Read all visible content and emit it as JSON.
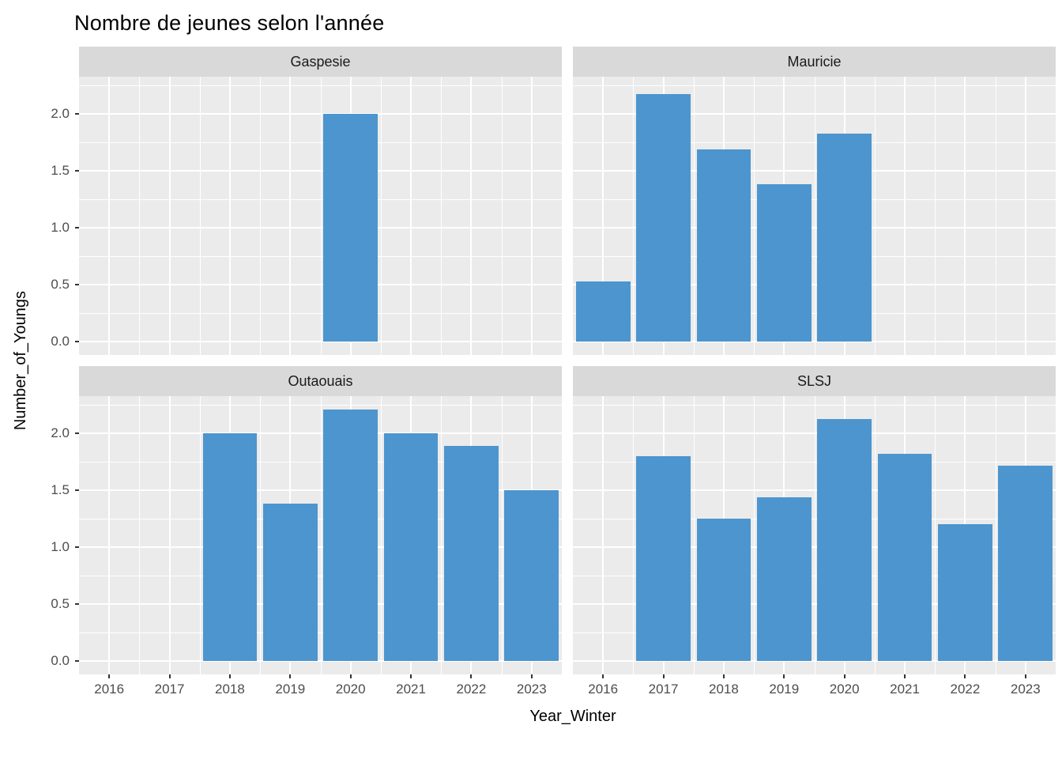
{
  "chart_data": {
    "type": "bar",
    "title": "Nombre de jeunes selon l'année",
    "xlabel": "Year_Winter",
    "ylabel": "Number_of_Youngs",
    "categories": [
      "2016",
      "2017",
      "2018",
      "2019",
      "2020",
      "2021",
      "2022",
      "2023"
    ],
    "y_ticks": [
      0,
      0.5,
      1,
      1.5,
      2
    ],
    "y_tick_labels": [
      "0.0",
      "0.5",
      "1.0",
      "1.5",
      "2.0"
    ],
    "ylim": [
      -0.12,
      2.33
    ],
    "grid": true,
    "legend": false,
    "bar_color": "#4D95CE",
    "panel_bg": "#EBEBEB",
    "strip_bg": "#D9D9D9",
    "facets": [
      {
        "name": "Gaspesie",
        "values": [
          null,
          null,
          null,
          null,
          2.0,
          null,
          null,
          null
        ]
      },
      {
        "name": "Mauricie",
        "values": [
          0.53,
          2.18,
          1.69,
          1.38,
          1.83,
          null,
          null,
          null
        ]
      },
      {
        "name": "Outaouais",
        "values": [
          null,
          null,
          2.0,
          1.38,
          2.21,
          2.0,
          1.89,
          1.5
        ]
      },
      {
        "name": "SLSJ",
        "values": [
          null,
          1.8,
          1.25,
          1.44,
          2.13,
          1.82,
          1.2,
          1.72
        ]
      }
    ]
  }
}
